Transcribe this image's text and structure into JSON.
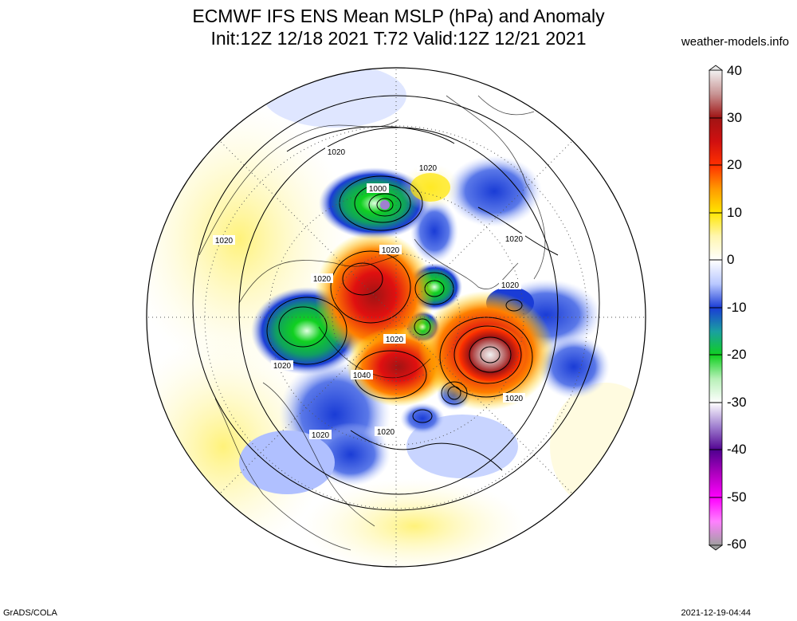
{
  "title": {
    "line1": "ECMWF IFS ENS Mean MSLP (hPa) and Anomaly",
    "line2": "Init:12Z 12/18 2021  T:72 Valid:12Z 12/21 2021"
  },
  "source": "weather-models.info",
  "footer": {
    "left": "GrADS/COLA",
    "right": "2021-12-19-04:44"
  },
  "colorbar": {
    "labels": [
      "40",
      "30",
      "20",
      "10",
      "0",
      "-10",
      "-20",
      "-30",
      "-40",
      "-50",
      "-60"
    ],
    "colors": {
      "40": "#f2f2f2",
      "35": "#c89494",
      "30": "#a01414",
      "25": "#d01010",
      "20": "#ff3000",
      "15": "#ff9a00",
      "10": "#ffe600",
      "5": "#fff6b0",
      "0": "#ffffff",
      "-5": "#b9c8ff",
      "-10": "#1a3cd6",
      "-15": "#1aa0a0",
      "-20": "#10d020",
      "-25": "#b8f0b8",
      "-30": "#ffffff",
      "-35": "#a080d0",
      "-40": "#500090",
      "-45": "#b000c0",
      "-50": "#ff00ff",
      "-55": "#ff80ff",
      "-60": "#a0a0a0"
    }
  },
  "contour_labels": [
    {
      "id": "c1",
      "text": "1000"
    },
    {
      "id": "c2",
      "text": "1020"
    },
    {
      "id": "c3",
      "text": "1020"
    },
    {
      "id": "c4",
      "text": "1020"
    },
    {
      "id": "c5",
      "text": "1020"
    },
    {
      "id": "c6",
      "text": "1020"
    },
    {
      "id": "c7",
      "text": "1020"
    },
    {
      "id": "c8",
      "text": "1020"
    },
    {
      "id": "c9",
      "text": "1020"
    },
    {
      "id": "c10",
      "text": "1020"
    },
    {
      "id": "c11",
      "text": "1040"
    },
    {
      "id": "c12",
      "text": "1020"
    },
    {
      "id": "c13",
      "text": "1020"
    },
    {
      "id": "c14",
      "text": "1020"
    }
  ]
}
